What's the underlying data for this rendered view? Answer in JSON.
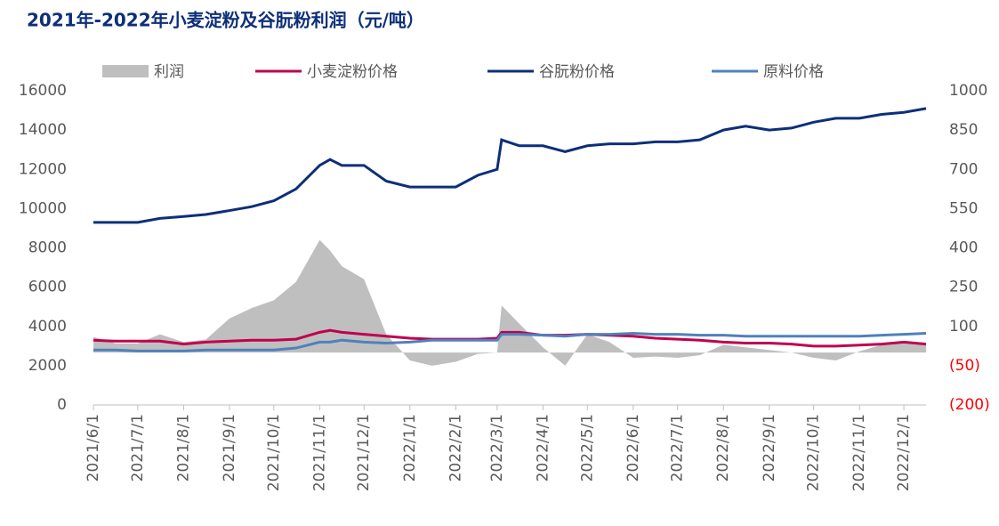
{
  "chart_data": {
    "type": "line",
    "title": "2021年-2022年小麦淀粉及谷朊粉利润（元/吨）",
    "x": [
      "2021/6/1",
      "2021/6/16",
      "2021/7/1",
      "2021/7/16",
      "2021/8/1",
      "2021/8/16",
      "2021/9/1",
      "2021/9/16",
      "2021/10/1",
      "2021/10/16",
      "2021/11/1",
      "2021/11/8",
      "2021/11/16",
      "2021/12/1",
      "2021/12/16",
      "2022/1/1",
      "2022/1/16",
      "2022/2/1",
      "2022/2/16",
      "2022/3/1",
      "2022/3/4",
      "2022/3/16",
      "2022/4/1",
      "2022/4/16",
      "2022/5/1",
      "2022/5/16",
      "2022/6/1",
      "2022/6/16",
      "2022/7/1",
      "2022/7/16",
      "2022/8/1",
      "2022/8/16",
      "2022/9/1",
      "2022/9/16",
      "2022/10/1",
      "2022/10/16",
      "2022/11/1",
      "2022/11/16",
      "2022/12/1",
      "2022/12/16"
    ],
    "xlim": [
      "2021/6/1",
      "2022/12/16"
    ],
    "xticks": [
      "2021/6/1",
      "2021/7/1",
      "2021/8/1",
      "2021/9/1",
      "2021/10/1",
      "2021/11/1",
      "2021/12/1",
      "2022/1/1",
      "2022/2/1",
      "2022/3/1",
      "2022/4/1",
      "2022/5/1",
      "2022/6/1",
      "2022/7/1",
      "2022/8/1",
      "2022/9/1",
      "2022/10/1",
      "2022/11/1",
      "2022/12/1"
    ],
    "ylim": [
      0,
      16000
    ],
    "yticks": [
      0,
      2000,
      4000,
      6000,
      8000,
      10000,
      12000,
      14000,
      16000
    ],
    "y2lim": [
      -200,
      1000
    ],
    "y2ticks": [
      {
        "value": -200,
        "label": "(200)"
      },
      {
        "value": -50,
        "label": "(50)"
      },
      100,
      250,
      400,
      550,
      700,
      850,
      1000
    ],
    "y2_negative_label_color": "#ff0000",
    "series": [
      {
        "name": "利润",
        "type": "area",
        "axis": "y2",
        "color": "#bfbfbf",
        "values": [
          60,
          35,
          35,
          70,
          40,
          50,
          130,
          170,
          200,
          270,
          430,
          390,
          330,
          280,
          70,
          -30,
          -50,
          -35,
          -5,
          0,
          180,
          110,
          20,
          -50,
          70,
          40,
          -20,
          -15,
          -20,
          -10,
          30,
          20,
          10,
          0,
          -20,
          -30,
          5,
          30,
          40,
          35
        ]
      },
      {
        "name": "小麦淀粉价格",
        "color": "#c0004f",
        "values": [
          3300,
          3250,
          3250,
          3250,
          3100,
          3200,
          3250,
          3300,
          3300,
          3350,
          3700,
          3800,
          3700,
          3600,
          3500,
          3400,
          3350,
          3350,
          3350,
          3400,
          3700,
          3700,
          3550,
          3550,
          3600,
          3550,
          3500,
          3400,
          3350,
          3300,
          3200,
          3150,
          3150,
          3100,
          3000,
          3000,
          3050,
          3100,
          3200,
          3100
        ]
      },
      {
        "name": "谷朊粉价格",
        "color": "#0d2f7a",
        "values": [
          9300,
          9300,
          9300,
          9500,
          9600,
          9700,
          9900,
          10100,
          10400,
          11000,
          12200,
          12500,
          12200,
          12200,
          11400,
          11100,
          11100,
          11100,
          11700,
          12000,
          13500,
          13200,
          13200,
          12900,
          13200,
          13300,
          13300,
          13400,
          13400,
          13500,
          14000,
          14200,
          14000,
          14100,
          14400,
          14600,
          14600,
          14800,
          14900,
          15100
        ]
      },
      {
        "name": "原料价格",
        "color": "#4f81bd",
        "values": [
          2800,
          2800,
          2750,
          2750,
          2750,
          2800,
          2800,
          2800,
          2800,
          2900,
          3200,
          3200,
          3300,
          3200,
          3150,
          3200,
          3300,
          3300,
          3300,
          3300,
          3600,
          3600,
          3550,
          3500,
          3600,
          3600,
          3650,
          3600,
          3600,
          3550,
          3550,
          3500,
          3500,
          3500,
          3500,
          3500,
          3500,
          3550,
          3600,
          3650
        ]
      }
    ]
  }
}
